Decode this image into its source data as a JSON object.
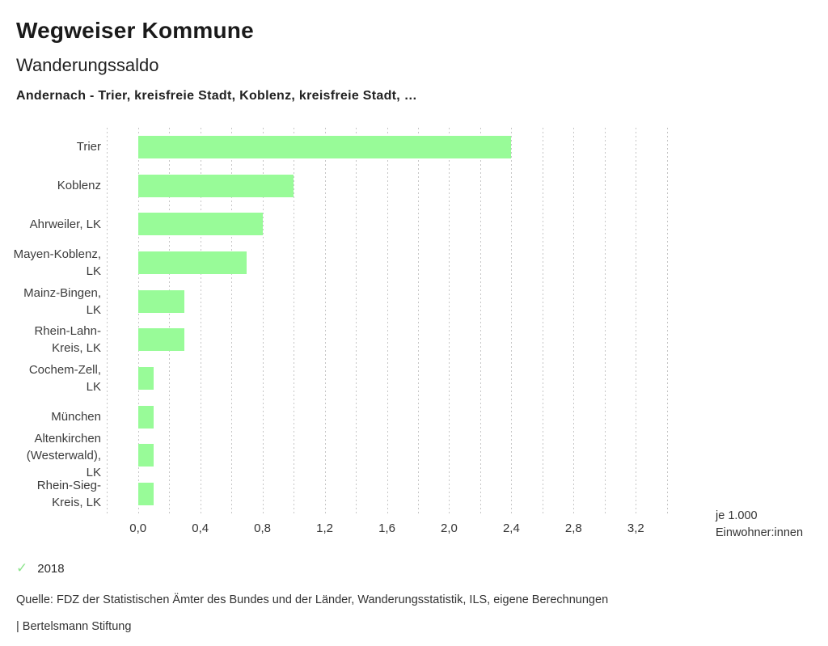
{
  "header": {
    "title": "Wegweiser Kommune",
    "subtitle": "Wanderungssaldo",
    "comparison": "Andernach - Trier, kreisfreie Stadt, Koblenz, kreisfreie Stadt, …"
  },
  "chart_data": {
    "type": "bar",
    "orientation": "horizontal",
    "title": "Wanderungssaldo",
    "categories": [
      "Trier",
      "Koblenz",
      "Ahrweiler, LK",
      "Mayen-Koblenz, LK",
      "Mainz-Bingen, LK",
      "Rhein-Lahn-Kreis, LK",
      "Cochem-Zell, LK",
      "München",
      "Altenkirchen (Westerwald), LK",
      "Rhein-Sieg-Kreis, LK"
    ],
    "category_label_lines": [
      [
        "Trier"
      ],
      [
        "Koblenz"
      ],
      [
        "Ahrweiler, LK"
      ],
      [
        "Mayen-Koblenz,",
        "LK"
      ],
      [
        "Mainz-Bingen,",
        "LK"
      ],
      [
        "Rhein-Lahn-",
        "Kreis, LK"
      ],
      [
        "Cochem-Zell,",
        "LK"
      ],
      [
        "München"
      ],
      [
        "Altenkirchen",
        "(Westerwald),",
        "LK"
      ],
      [
        "Rhein-Sieg-",
        "Kreis, LK"
      ]
    ],
    "series": [
      {
        "name": "2018",
        "values": [
          2.4,
          1.0,
          0.8,
          0.7,
          0.3,
          0.3,
          0.1,
          0.1,
          0.1,
          0.1
        ]
      }
    ],
    "xlabel": "je 1.000 Einwohner:innen",
    "unit_label_lines": [
      "je 1.000",
      "Einwohner:innen"
    ],
    "xlim": [
      -0.3,
      3.5
    ],
    "grid_min": -0.2,
    "grid_max": 3.4,
    "grid_step": 0.2,
    "grid_style": "dotted-vertical",
    "x_tick_values": [
      0.0,
      0.4,
      0.8,
      1.2,
      1.6,
      2.0,
      2.4,
      2.8,
      3.2
    ],
    "x_tick_labels": [
      "0,0",
      "0,4",
      "0,8",
      "1,2",
      "1,6",
      "2,0",
      "2,4",
      "2,8",
      "3,2"
    ],
    "legend_position": "bottom"
  },
  "legend": {
    "check_icon": "✓",
    "year": "2018"
  },
  "footer": {
    "source": "Quelle: FDZ der Statistischen Ämter des Bundes und der Länder, Wanderungsstatistik, ILS, eigene Berechnungen",
    "branding": "| Bertelsmann Stiftung"
  },
  "colors": {
    "bar": "#98fb98",
    "legend_check": "#8de58d",
    "grid": "#c6c6c6",
    "text": "#333333"
  }
}
